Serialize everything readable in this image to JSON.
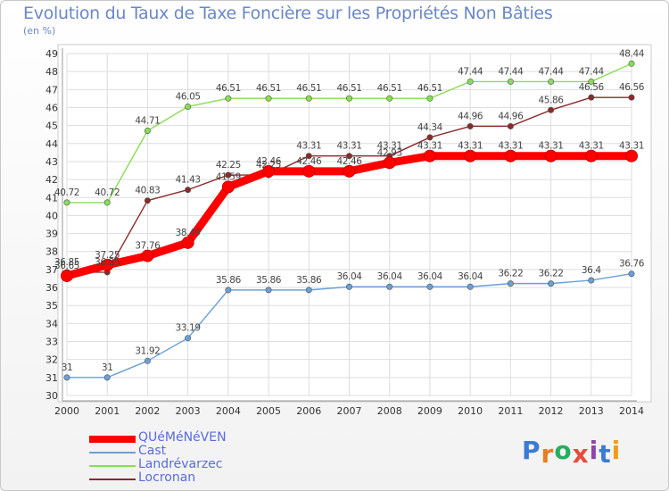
{
  "title": "Evolution du Taux de Taxe Foncière sur les Propriétés Non Bâties",
  "unit_label": "(en %)",
  "logo_text": "Proxiti",
  "chart_data": {
    "type": "line",
    "title": "Evolution du Taux de Taxe Foncière sur les Propriétés Non Bâties",
    "ylabel": "(en %)",
    "xlabel": "",
    "x": [
      "2000",
      "2001",
      "2002",
      "2003",
      "2004",
      "2005",
      "2006",
      "2007",
      "2008",
      "2009",
      "2010",
      "2011",
      "2012",
      "2013",
      "2014"
    ],
    "ylim": [
      30,
      49
    ],
    "yticks": [
      30,
      31,
      32,
      33,
      34,
      35,
      36,
      37,
      38,
      39,
      40,
      41,
      42,
      43,
      44,
      45,
      46,
      47,
      48,
      49
    ],
    "grid": true,
    "legend_position": "bottom-left",
    "series": [
      {
        "name": "QUéMéNéVEN",
        "color": "#ff0000",
        "values": [
          36.65,
          37.25,
          37.76,
          38.49,
          41.59,
          42.46,
          42.46,
          42.46,
          42.93,
          43.31,
          43.31,
          43.31,
          43.31,
          43.31,
          43.31
        ],
        "labels": [
          "36.65",
          "37.25",
          "37.76",
          "38.49",
          "41.59",
          "42.46",
          "42.46",
          "42.46",
          "42.93",
          "43.31",
          "43.31",
          "43.31",
          "43.31",
          "43.31",
          "43.31"
        ]
      },
      {
        "name": "Cast",
        "color": "#6aa0d8",
        "values": [
          31,
          31,
          31.92,
          33.19,
          35.86,
          35.86,
          35.86,
          36.04,
          36.04,
          36.04,
          36.04,
          36.22,
          36.22,
          36.4,
          36.76
        ],
        "labels": [
          "31",
          "31",
          "31.92",
          "33.19",
          "35.86",
          "35.86",
          "35.86",
          "36.04",
          "36.04",
          "36.04",
          "36.04",
          "36.22",
          "36.22",
          "36.4",
          "36.76"
        ]
      },
      {
        "name": "Landrévarzec",
        "color": "#88dd55",
        "values": [
          40.72,
          40.72,
          44.71,
          46.05,
          46.51,
          46.51,
          46.51,
          46.51,
          46.51,
          46.51,
          47.44,
          47.44,
          47.44,
          47.44,
          48.44
        ],
        "labels": [
          "40.72",
          "40.72",
          "44.71",
          "46.05",
          "46.51",
          "46.51",
          "46.51",
          "46.51",
          "46.51",
          "46.51",
          "47.44",
          "47.44",
          "47.44",
          "47.44",
          "48.44"
        ]
      },
      {
        "name": "Locronan",
        "color": "#8b2a2a",
        "values": [
          36.85,
          36.85,
          40.83,
          41.43,
          42.25,
          42.25,
          43.31,
          43.31,
          43.31,
          44.34,
          44.96,
          44.96,
          45.86,
          46.56,
          46.56
        ],
        "labels": [
          "36.85",
          "36.85",
          "40.83",
          "41.43",
          "42.25",
          "42.25",
          "43.31",
          "43.31",
          "43.31",
          "44.34",
          "44.96",
          "44.96",
          "45.86",
          "46.56",
          "46.56"
        ]
      }
    ]
  }
}
